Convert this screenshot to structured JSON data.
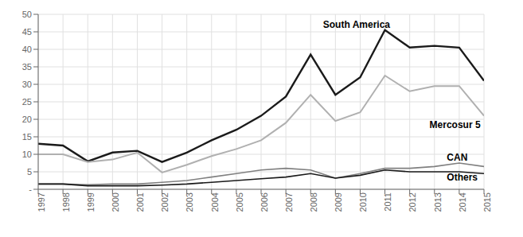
{
  "chart_data": {
    "type": "line",
    "x": [
      1997,
      1998,
      1999,
      2000,
      2001,
      2002,
      2003,
      2004,
      2005,
      2006,
      2007,
      2008,
      2009,
      2010,
      2011,
      2012,
      2013,
      2014,
      2015
    ],
    "xlim": [
      1997,
      2015
    ],
    "xticks": [
      1997,
      1998,
      1999,
      2000,
      2001,
      2002,
      2003,
      2004,
      2005,
      2006,
      2007,
      2008,
      2009,
      2010,
      2011,
      2012,
      2013,
      2014,
      2015
    ],
    "ylim": [
      0,
      50
    ],
    "yticks": [
      {
        "value": 0,
        "label": "-"
      },
      5,
      10,
      15,
      20,
      25,
      30,
      35,
      40,
      45,
      50
    ],
    "grid": true,
    "series": [
      {
        "name": "South America",
        "color": "#1a1a1a",
        "values": [
          13.0,
          12.5,
          8.0,
          10.5,
          11.0,
          7.8,
          10.5,
          14.0,
          17.0,
          21.0,
          26.5,
          38.5,
          27.0,
          32.0,
          45.5,
          40.5,
          41.0,
          40.5,
          31.0
        ]
      },
      {
        "name": "Mercosur 5",
        "color": "#b0b0b0",
        "values": [
          10.0,
          10.0,
          7.8,
          8.5,
          10.5,
          4.8,
          7.0,
          9.5,
          11.5,
          14.0,
          19.0,
          27.0,
          19.5,
          22.0,
          32.5,
          28.0,
          29.5,
          29.5,
          21.0
        ]
      },
      {
        "name": "CAN",
        "color": "#808080",
        "values": [
          1.5,
          1.5,
          1.3,
          1.5,
          1.5,
          2.0,
          2.5,
          3.5,
          4.5,
          5.5,
          6.0,
          5.5,
          3.2,
          4.5,
          6.0,
          6.0,
          6.5,
          7.5,
          6.5
        ]
      },
      {
        "name": "Others",
        "color": "#1a1a1a",
        "values": [
          1.5,
          1.5,
          1.0,
          1.0,
          1.0,
          1.2,
          1.5,
          2.0,
          2.5,
          3.0,
          3.5,
          4.5,
          3.2,
          4.0,
          5.5,
          5.0,
          5.0,
          5.0,
          4.5
        ]
      }
    ],
    "annotations": [
      {
        "text": "South America",
        "x": 2008.5,
        "y": 47.0
      },
      {
        "text": "Mercosur 5",
        "x": 2012.8,
        "y": 18.5
      },
      {
        "text": "CAN",
        "x": 2013.5,
        "y": 9.2
      },
      {
        "text": "Others",
        "x": 2013.5,
        "y": 3.5
      }
    ]
  }
}
